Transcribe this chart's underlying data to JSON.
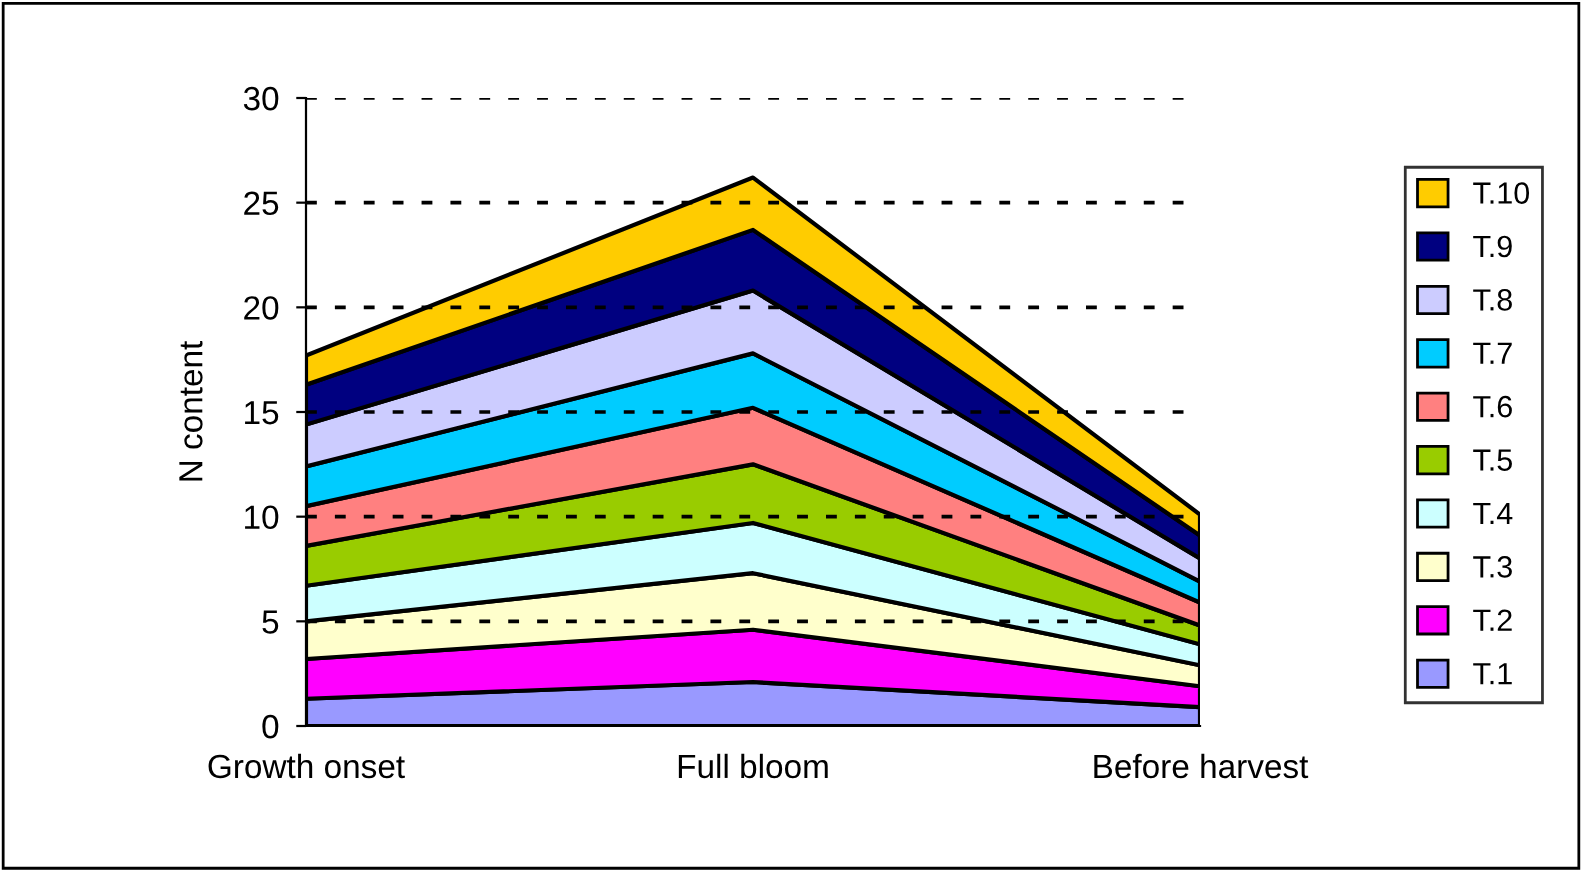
{
  "chart_data": {
    "type": "area",
    "stacked": true,
    "ylabel": "N content",
    "categories": [
      "Growth onset",
      "Full bloom",
      "Before harvest"
    ],
    "series": [
      {
        "name": "T.1",
        "color": "#9999ff",
        "values": [
          1.3,
          2.1,
          0.9
        ]
      },
      {
        "name": "T.2",
        "color": "#ff00ff",
        "values": [
          1.9,
          2.5,
          1.0
        ]
      },
      {
        "name": "T.3",
        "color": "#ffffcc",
        "values": [
          1.8,
          2.7,
          1.0
        ]
      },
      {
        "name": "T.4",
        "color": "#ccffff",
        "values": [
          1.7,
          2.4,
          1.0
        ]
      },
      {
        "name": "T.5",
        "color": "#99cc00",
        "values": [
          1.9,
          2.8,
          0.9
        ]
      },
      {
        "name": "T.6",
        "color": "#ff8080",
        "values": [
          1.9,
          2.7,
          1.1
        ]
      },
      {
        "name": "T.7",
        "color": "#00ccff",
        "values": [
          1.9,
          2.6,
          1.0
        ]
      },
      {
        "name": "T.8",
        "color": "#ccccff",
        "values": [
          2.0,
          3.0,
          1.1
        ]
      },
      {
        "name": "T.9",
        "color": "#000080",
        "values": [
          1.9,
          2.9,
          1.1
        ]
      },
      {
        "name": "T.10",
        "color": "#ffcc00",
        "values": [
          1.4,
          2.5,
          1.0
        ]
      }
    ],
    "ylim": [
      0,
      30
    ],
    "yticks": [
      0,
      5,
      10,
      15,
      20,
      25,
      30
    ],
    "grid": "y",
    "legend": "right"
  }
}
